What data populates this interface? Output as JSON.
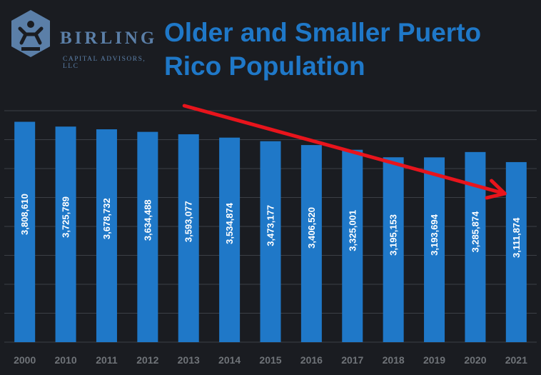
{
  "header": {
    "logo_word": "BIRLING",
    "logo_sub": "CAPITAL ADVISORS, LLC",
    "title_line1": "Older and Smaller Puerto",
    "title_line2": "Rico Population"
  },
  "colors": {
    "bar": "#1f78c8",
    "title": "#1f78c8",
    "trend_arrow": "#e8141c",
    "grid": "#3c3f46",
    "background": "#1a1c21"
  },
  "chart_data": {
    "type": "bar",
    "title": "Older and Smaller Puerto Rico Population",
    "xlabel": "",
    "ylabel": "",
    "categories": [
      "2000",
      "2010",
      "2011",
      "2012",
      "2013",
      "2014",
      "2015",
      "2016",
      "2017",
      "2018",
      "2019",
      "2020",
      "2021"
    ],
    "values": [
      3808610,
      3725789,
      3678732,
      3634488,
      3593077,
      3534874,
      3473177,
      3406520,
      3325001,
      3195153,
      3193694,
      3285874,
      3111874
    ],
    "value_labels": [
      "3,808,610",
      "3,725,789",
      "3,678,732",
      "3,634,488",
      "3,593,077",
      "3,534,874",
      "3,473,177",
      "3,406,520",
      "3,325,001",
      "3,195,153",
      "3,193,694",
      "3,285,874",
      "3,111,874"
    ],
    "ylim": [
      0,
      4000000
    ],
    "grid": true,
    "annotation": "downward trend arrow from 2013 to 2021"
  }
}
